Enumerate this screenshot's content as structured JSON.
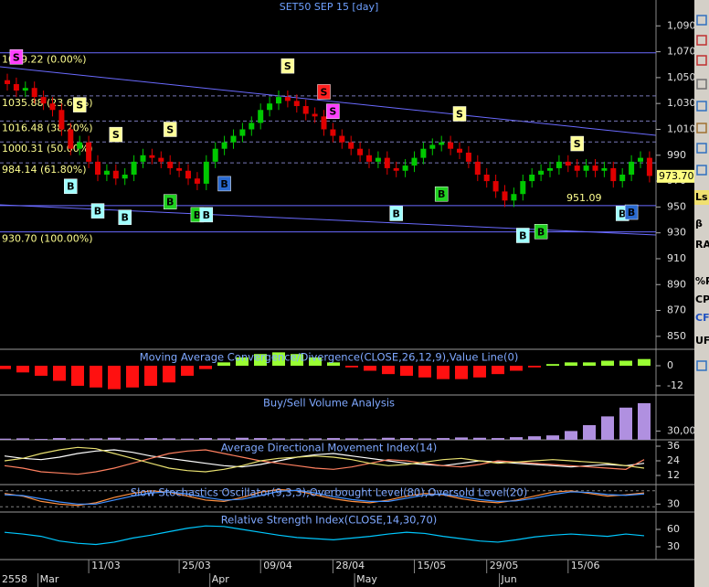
{
  "chart_data": {
    "type": "candlestick",
    "title": "SET50 SEP 15   [day]",
    "categories": [
      null,
      null,
      null,
      null,
      null,
      null,
      null,
      null,
      null,
      "11/03",
      null,
      null,
      null,
      null,
      null,
      null,
      null,
      null,
      null,
      "25/03",
      null,
      null,
      null,
      null,
      null,
      null,
      null,
      null,
      "09/04",
      null,
      null,
      null,
      null,
      null,
      null,
      null,
      "28/04",
      null,
      null,
      null,
      null,
      null,
      null,
      null,
      null,
      "15/05",
      null,
      null,
      null,
      null,
      null,
      null,
      null,
      "29/05",
      null,
      null,
      null,
      null,
      null,
      null,
      null,
      null,
      "15/06",
      null,
      null,
      null,
      null,
      null,
      null,
      null,
      null,
      null
    ],
    "months": [
      "2558",
      null,
      null,
      null,
      "Mar",
      null,
      null,
      null,
      null,
      null,
      null,
      null,
      null,
      null,
      null,
      null,
      null,
      null,
      null,
      null,
      null,
      null,
      null,
      "Apr",
      null,
      null,
      null,
      null,
      null,
      null,
      null,
      null,
      null,
      null,
      null,
      null,
      null,
      null,
      null,
      "May",
      null,
      null,
      null,
      null,
      null,
      null,
      null,
      null,
      null,
      null,
      null,
      null,
      null,
      null,
      null,
      "Jun",
      null,
      null,
      null,
      null,
      null,
      null,
      null,
      null,
      null,
      null,
      null,
      null,
      null,
      null,
      null,
      null
    ],
    "open": [
      1048,
      1045,
      1040,
      1042,
      1035,
      1030,
      1025,
      1010,
      995,
      1000,
      985,
      975,
      978,
      972,
      975,
      985,
      990,
      988,
      985,
      980,
      978,
      972,
      968,
      985,
      995,
      1000,
      1005,
      1010,
      1015,
      1025,
      1030,
      1035,
      1032,
      1028,
      1022,
      1020,
      1010,
      1005,
      1000,
      995,
      990,
      985,
      988,
      980,
      978,
      982,
      988,
      995,
      998,
      1000,
      995,
      992,
      985,
      975,
      970,
      962,
      955,
      960,
      970,
      975,
      978,
      980,
      985,
      982,
      978,
      982,
      978,
      980,
      970,
      975,
      985,
      988
    ],
    "high": [
      1053,
      1050,
      1047,
      1047,
      1040,
      1035,
      1030,
      1015,
      1005,
      1005,
      990,
      983,
      983,
      980,
      990,
      995,
      995,
      993,
      990,
      985,
      983,
      977,
      990,
      1000,
      1005,
      1010,
      1015,
      1020,
      1030,
      1035,
      1040,
      1040,
      1037,
      1033,
      1027,
      1025,
      1015,
      1010,
      1005,
      1000,
      995,
      993,
      993,
      985,
      987,
      993,
      1000,
      1003,
      1005,
      1005,
      1000,
      997,
      990,
      980,
      975,
      967,
      965,
      975,
      980,
      983,
      985,
      990,
      990,
      987,
      987,
      987,
      985,
      985,
      980,
      990,
      993,
      993
    ],
    "low": [
      1040,
      1035,
      1035,
      1030,
      1025,
      1020,
      1005,
      990,
      990,
      980,
      970,
      970,
      967,
      967,
      970,
      980,
      983,
      980,
      975,
      973,
      967,
      963,
      963,
      980,
      990,
      995,
      1000,
      1005,
      1010,
      1020,
      1025,
      1027,
      1023,
      1017,
      1015,
      1005,
      1000,
      995,
      990,
      985,
      980,
      980,
      975,
      973,
      973,
      977,
      983,
      990,
      993,
      990,
      987,
      980,
      970,
      965,
      957,
      950,
      950,
      955,
      965,
      970,
      973,
      975,
      977,
      973,
      973,
      973,
      973,
      965,
      965,
      970,
      980,
      969
    ],
    "close": [
      1045,
      1040,
      1042,
      1035,
      1030,
      1025,
      1010,
      995,
      1000,
      985,
      975,
      978,
      972,
      975,
      985,
      990,
      988,
      985,
      980,
      978,
      972,
      968,
      985,
      995,
      1000,
      1005,
      1010,
      1015,
      1025,
      1030,
      1035,
      1032,
      1028,
      1022,
      1020,
      1010,
      1005,
      1000,
      995,
      990,
      985,
      988,
      980,
      978,
      982,
      988,
      995,
      998,
      1000,
      995,
      992,
      985,
      975,
      970,
      962,
      955,
      960,
      970,
      975,
      978,
      980,
      985,
      982,
      978,
      982,
      978,
      980,
      970,
      975,
      985,
      988,
      974
    ],
    "up_color": "#00c800",
    "down_color": "#e00000",
    "ylim": [
      840,
      1110
    ],
    "yticks": [
      {
        "value": 1090,
        "label": "1,090"
      },
      {
        "value": 1070,
        "label": "1,070"
      },
      {
        "value": 1050,
        "label": "1,050"
      },
      {
        "value": 1030,
        "label": "1,030"
      },
      {
        "value": 1010,
        "label": "1,010"
      },
      990,
      970,
      950,
      930,
      910,
      890,
      870,
      850
    ],
    "fib_levels": [
      {
        "value": 1069.22,
        "label": "1069.22 (0.00%)"
      },
      {
        "value": 1035.88,
        "label": "1035.88 (23.60%)"
      },
      {
        "value": 1016.48,
        "label": "1016.48 (38.20%)"
      },
      {
        "value": 1000.31,
        "label": "1000.31 (50.00%)"
      },
      {
        "value": 984.14,
        "label": "984.14 (61.80%)"
      },
      {
        "value": 930.7,
        "label": "930.70 (100.00%)"
      }
    ],
    "support": 951.09,
    "last_price": {
      "value": 973.7,
      "label": "973.70"
    },
    "signals": [
      {
        "text": "S",
        "value": 1066,
        "index": 1,
        "color": "#ff40ff"
      },
      {
        "text": "S",
        "value": 1029,
        "index": 8,
        "color": "#ffff99"
      },
      {
        "text": "S",
        "value": 1006,
        "index": 12,
        "color": "#ffff99"
      },
      {
        "text": "S",
        "value": 1010,
        "index": 18,
        "color": "#ffff99"
      },
      {
        "text": "S",
        "value": 1059,
        "index": 31,
        "color": "#ffff99"
      },
      {
        "text": "S",
        "value": 1039,
        "index": 35,
        "color": "#ff2020"
      },
      {
        "text": "S",
        "value": 1024,
        "index": 36,
        "color": "#ff40ff"
      },
      {
        "text": "S",
        "value": 1022,
        "index": 50,
        "color": "#ffff99"
      },
      {
        "text": "S",
        "value": 999,
        "index": 63,
        "color": "#ffff99"
      },
      {
        "text": "B",
        "value": 966,
        "index": 7,
        "color": "#a0ffff"
      },
      {
        "text": "B",
        "value": 947,
        "index": 10,
        "color": "#a0ffff"
      },
      {
        "text": "B",
        "value": 942,
        "index": 13,
        "color": "#a0ffff"
      },
      {
        "text": "B",
        "value": 954,
        "index": 18,
        "color": "#20d020"
      },
      {
        "text": "B",
        "value": 944,
        "index": 21,
        "color": "#20d020"
      },
      {
        "text": "B",
        "value": 944,
        "index": 22,
        "color": "#a0ffff"
      },
      {
        "text": "B",
        "value": 968,
        "index": 24,
        "color": "#2a6ad0"
      },
      {
        "text": "B",
        "value": 945,
        "index": 43,
        "color": "#a0ffff"
      },
      {
        "text": "B",
        "value": 960,
        "index": 48,
        "color": "#20d020"
      },
      {
        "text": "B",
        "value": 928,
        "index": 57,
        "color": "#a0ffff"
      },
      {
        "text": "B",
        "value": 931,
        "index": 59,
        "color": "#20d020"
      },
      {
        "text": "B",
        "value": 945,
        "index": 68,
        "color": "#a0ffff"
      },
      {
        "text": "B",
        "value": 946,
        "index": 69,
        "color": "#2a6ad0"
      }
    ],
    "panels": [
      {
        "type": "bar",
        "title": "Moving Average Convergence/Divergence(CLOSE,26,12,9),Value Line(0)",
        "color": "#99ff33",
        "neg_color": "#ff1010",
        "ylim": [
          -17.5,
          9.3
        ],
        "yticks": [
          0,
          -12
        ],
        "values": [
          -2,
          -4,
          -6,
          -9,
          -12,
          -13,
          -14,
          -13,
          -12,
          -10,
          -6,
          -2,
          2,
          5,
          7,
          8,
          7,
          5,
          2,
          -1,
          -3,
          -5,
          -6,
          -7,
          -8,
          -8,
          -7,
          -5,
          -3,
          -1,
          1,
          2,
          2,
          3,
          3,
          4
        ]
      },
      {
        "type": "bar",
        "title": "Buy/Sell Volume Analysis",
        "color": "#b090e0",
        "ylim": [
          0,
          150000
        ],
        "yticks": [
          {
            "value": 30000,
            "label": "30,000"
          }
        ],
        "values": [
          4000,
          5000,
          3000,
          6000,
          4000,
          5000,
          7000,
          4000,
          6000,
          5000,
          4000,
          6000,
          5000,
          7000,
          6000,
          5000,
          4000,
          5000,
          6000,
          5000,
          4000,
          7000,
          6000,
          5000,
          6000,
          8000,
          7000,
          6000,
          9000,
          12000,
          15000,
          30000,
          50000,
          80000,
          110000,
          125000
        ]
      },
      {
        "type": "line",
        "title": "Average Directional Movement Index(14)",
        "ylim": [
          4.5,
          40.5
        ],
        "yticks": [
          36,
          24,
          12
        ],
        "series": [
          {
            "color": "#ffffff",
            "values": [
              28,
              26,
              25,
              27,
              30,
              32,
              33,
              31,
              28,
              26,
              24,
              22,
              20,
              19,
              21,
              24,
              27,
              29,
              30,
              28,
              26,
              24,
              22,
              21,
              20,
              22,
              24,
              23,
              22,
              21,
              20,
              19,
              20,
              21,
              20,
              22
            ]
          },
          {
            "color": "#ff8060",
            "values": [
              20,
              18,
              15,
              14,
              13,
              15,
              18,
              22,
              26,
              30,
              32,
              33,
              30,
              27,
              24,
              22,
              20,
              18,
              17,
              19,
              22,
              25,
              24,
              22,
              20,
              19,
              21,
              24,
              23,
              22,
              21,
              20,
              19,
              18,
              17,
              25
            ]
          },
          {
            "color": "#e8e070",
            "values": [
              24,
              26,
              30,
              33,
              35,
              34,
              30,
              26,
              22,
              18,
              16,
              15,
              17,
              20,
              24,
              26,
              27,
              28,
              27,
              25,
              22,
              20,
              21,
              23,
              25,
              26,
              24,
              22,
              23,
              24,
              25,
              24,
              23,
              22,
              20,
              18
            ]
          }
        ]
      },
      {
        "type": "line",
        "title": "Slow Stochastics Oscillator(9,3,3),Overbought Level(80),Oversold Level(20)",
        "ylim": [
          0,
          100
        ],
        "yticks": [
          30
        ],
        "levels": [
          80,
          20
        ],
        "series": [
          {
            "color": "#ff9040",
            "values": [
              70,
              60,
              40,
              30,
              25,
              35,
              55,
              70,
              80,
              75,
              60,
              45,
              40,
              55,
              75,
              85,
              80,
              65,
              50,
              40,
              35,
              45,
              60,
              70,
              65,
              50,
              40,
              35,
              45,
              60,
              75,
              80,
              70,
              60,
              65,
              72
            ]
          },
          {
            "color": "#4090ff",
            "values": [
              65,
              62,
              50,
              38,
              30,
              30,
              45,
              60,
              72,
              76,
              68,
              55,
              45,
              48,
              62,
              78,
              82,
              72,
              58,
              47,
              40,
              40,
              52,
              64,
              68,
              58,
              47,
              40,
              42,
              52,
              66,
              76,
              74,
              66,
              63,
              68
            ]
          }
        ]
      },
      {
        "type": "line",
        "title": "Relative Strength Index(CLOSE,14,30,70)",
        "ylim": [
          7.9,
          88.4
        ],
        "yticks": [
          60,
          30
        ],
        "series": [
          {
            "color": "#00c8ff",
            "values": [
              55,
              52,
              48,
              40,
              36,
              34,
              38,
              45,
              50,
              56,
              62,
              66,
              65,
              60,
              55,
              50,
              46,
              44,
              42,
              45,
              48,
              52,
              55,
              53,
              48,
              44,
              40,
              38,
              42,
              47,
              50,
              52,
              50,
              48,
              52,
              49
            ]
          }
        ]
      }
    ],
    "toolbar": [
      "Ls",
      "β",
      "RA",
      "%P",
      "CP",
      "CF",
      "UF"
    ]
  }
}
